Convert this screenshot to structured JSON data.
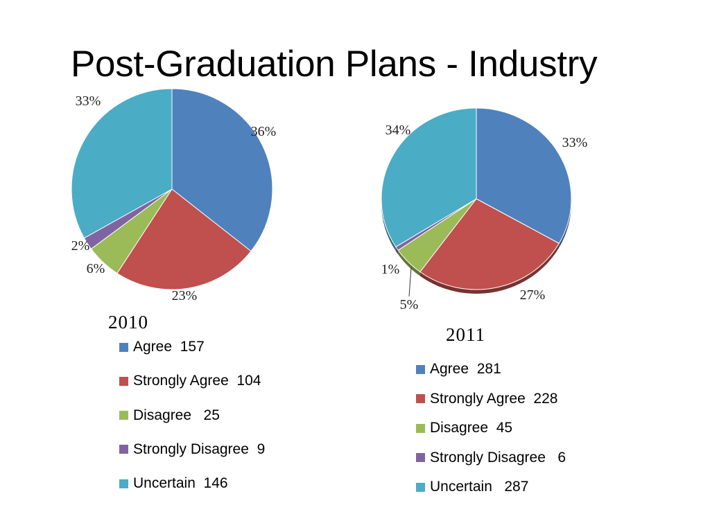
{
  "title": "Post-Graduation Plans - Industry",
  "chart_data": [
    {
      "type": "pie",
      "year": "2010",
      "categories": [
        "Agree",
        "Strongly Agree",
        "Disagree",
        "Strongly Disagree",
        "Uncertain"
      ],
      "values": [
        157,
        104,
        25,
        9,
        146
      ],
      "legend": [
        "Agree  157",
        "Strongly Agree  104",
        "Disagree   25",
        "Strongly Disagree  9",
        "Uncertain  146"
      ],
      "percent_labels": [
        "36%",
        "23%",
        "6%",
        "2%",
        "33%"
      ],
      "colors": [
        "#4F81BD",
        "#C0504D",
        "#9BBB59",
        "#8064A2",
        "#4BACC6"
      ]
    },
    {
      "type": "pie",
      "year": "2011",
      "categories": [
        "Agree",
        "Strongly Agree",
        "Disagree",
        "Strongly Disagree",
        "Uncertain"
      ],
      "values": [
        281,
        228,
        45,
        6,
        287
      ],
      "legend": [
        "Agree  281",
        "Strongly Agree  228",
        "Disagree  45",
        "Strongly Disagree   6",
        "Uncertain   287"
      ],
      "percent_labels": [
        "33%",
        "27%",
        "5%",
        "1%",
        "34%"
      ],
      "colors": [
        "#4F81BD",
        "#C0504D",
        "#9BBB59",
        "#8064A2",
        "#4BACC6"
      ]
    }
  ]
}
